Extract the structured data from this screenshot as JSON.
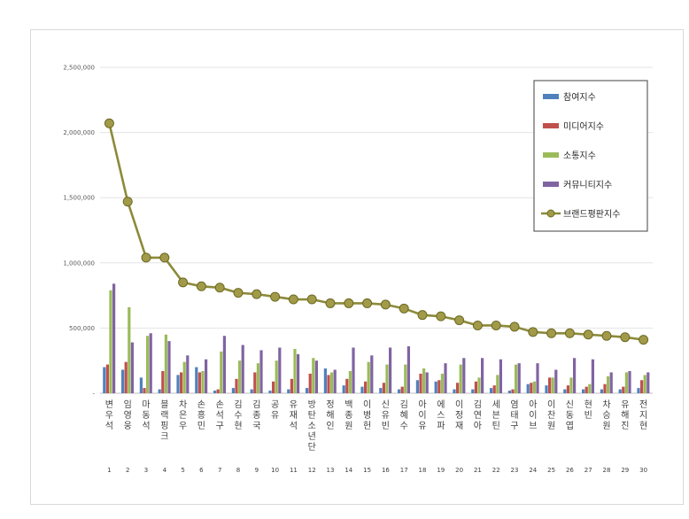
{
  "chart_data": {
    "type": "bar",
    "ylim": [
      0,
      2500000
    ],
    "yticks": [
      "-",
      "500,000",
      "1,000,000",
      "1,500,000",
      "2,000,000",
      "2,500,000"
    ],
    "grid": true,
    "legend_position": "top-right",
    "categories": [
      "변우석",
      "임영웅",
      "마동석",
      "블랙핑크",
      "차은우",
      "손흥민",
      "손석구",
      "김수현",
      "김종국",
      "공유",
      "유재석",
      "방탄소년단",
      "정해인",
      "백종원",
      "이병헌",
      "신유빈",
      "김혜수",
      "아이유",
      "에스파",
      "이정재",
      "김연아",
      "세븐틴",
      "염태구",
      "아이브",
      "이찬원",
      "신동엽",
      "현빈",
      "차승원",
      "유해진",
      "전지현"
    ],
    "ranks": [
      "1",
      "2",
      "3",
      "4",
      "5",
      "6",
      "7",
      "8",
      "9",
      "10",
      "11",
      "12",
      "13",
      "14",
      "15",
      "16",
      "17",
      "18",
      "19",
      "20",
      "21",
      "22",
      "23",
      "24",
      "25",
      "26",
      "27",
      "28",
      "29",
      "30"
    ],
    "series": [
      {
        "name": "참여지수",
        "color": "#4f81bd",
        "values": [
          200000,
          180000,
          120000,
          30000,
          140000,
          200000,
          20000,
          40000,
          30000,
          20000,
          30000,
          40000,
          190000,
          60000,
          50000,
          40000,
          30000,
          100000,
          90000,
          30000,
          30000,
          40000,
          20000,
          70000,
          60000,
          30000,
          30000,
          30000,
          30000,
          40000
        ]
      },
      {
        "name": "미디어지수",
        "color": "#c0504d",
        "values": [
          220000,
          240000,
          40000,
          170000,
          160000,
          160000,
          30000,
          110000,
          160000,
          90000,
          110000,
          150000,
          140000,
          110000,
          90000,
          80000,
          50000,
          150000,
          100000,
          80000,
          90000,
          60000,
          30000,
          80000,
          120000,
          60000,
          50000,
          70000,
          50000,
          100000
        ]
      },
      {
        "name": "소통지수",
        "color": "#9bbb59",
        "values": [
          790000,
          660000,
          440000,
          450000,
          240000,
          170000,
          320000,
          250000,
          230000,
          250000,
          340000,
          270000,
          160000,
          170000,
          240000,
          220000,
          220000,
          190000,
          150000,
          220000,
          120000,
          140000,
          220000,
          90000,
          120000,
          120000,
          70000,
          130000,
          160000,
          140000
        ]
      },
      {
        "name": "커뮤니티지수",
        "color": "#8064a2",
        "values": [
          840000,
          390000,
          460000,
          400000,
          290000,
          260000,
          440000,
          370000,
          330000,
          350000,
          300000,
          250000,
          180000,
          350000,
          290000,
          350000,
          360000,
          160000,
          230000,
          270000,
          270000,
          260000,
          230000,
          230000,
          180000,
          270000,
          260000,
          160000,
          170000,
          160000
        ]
      },
      {
        "name": "브랜드평판지수",
        "color": "#8c8a3a",
        "values": [
          2070000,
          1470000,
          1040000,
          1040000,
          850000,
          820000,
          810000,
          770000,
          760000,
          740000,
          720000,
          720000,
          690000,
          690000,
          690000,
          680000,
          650000,
          600000,
          590000,
          560000,
          520000,
          520000,
          510000,
          470000,
          460000,
          460000,
          450000,
          440000,
          430000,
          410000
        ]
      }
    ]
  }
}
